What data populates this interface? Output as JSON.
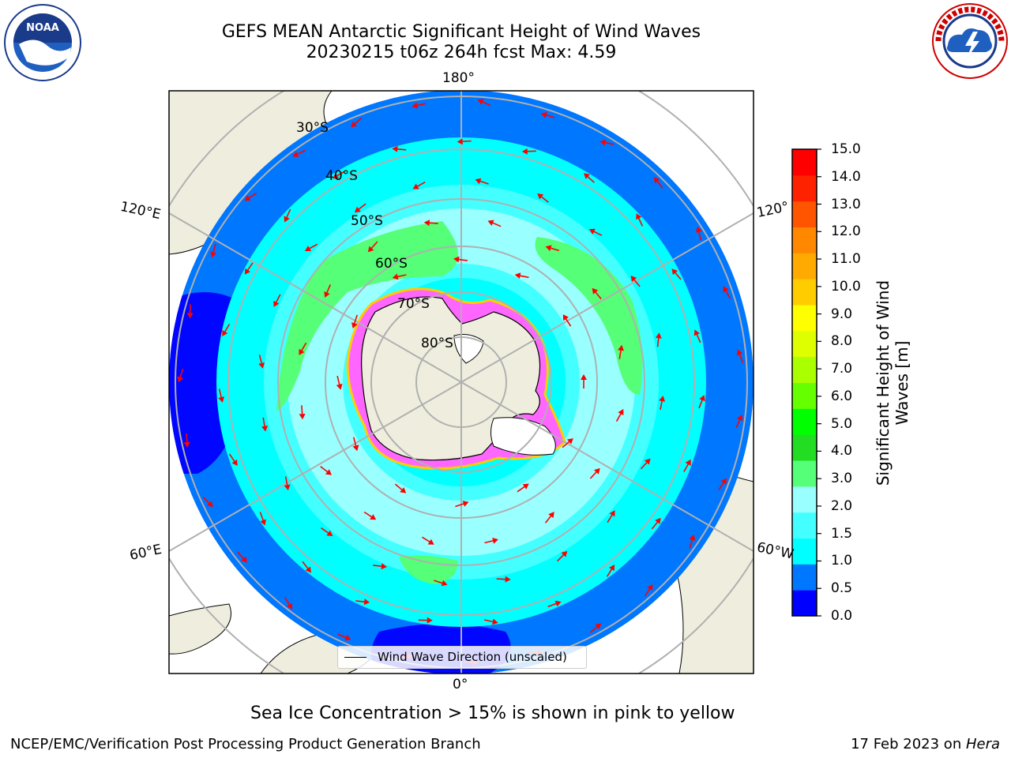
{
  "header": {
    "title_line1": "GEFS MEAN Antarctic Significant Height of Wind Waves",
    "title_line2": "20230215 t06z 264h fcst   Max: 4.59"
  },
  "map": {
    "projection": "south-polar-stereographic",
    "longitude_labels": {
      "top": "180°",
      "bottom": "0°",
      "upper_left": "120°E",
      "upper_right": "120°",
      "lower_left": "60°E",
      "lower_right": "60°W"
    },
    "latitude_labels": [
      "30°S",
      "40°S",
      "50°S",
      "60°S",
      "70°S",
      "80°S"
    ],
    "legend": "Wind Wave Direction (unscaled)",
    "arrow_color": "#ff0000",
    "land_color": "#efeede",
    "ice_colors": [
      "#ff00ff",
      "#ffff00",
      "#ffffff"
    ]
  },
  "colorbar": {
    "label": "Significant Height of Wind Waves [m]",
    "ticks": [
      "0.0",
      "0.5",
      "1.0",
      "1.5",
      "2.0",
      "3.0",
      "4.0",
      "5.0",
      "6.0",
      "7.0",
      "8.0",
      "9.0",
      "10.0",
      "11.0",
      "12.0",
      "13.0",
      "14.0",
      "15.0"
    ],
    "colors": [
      "#0000ff",
      "#0077ff",
      "#00ffff",
      "#44ffff",
      "#99ffff",
      "#55ff77",
      "#22dd22",
      "#00ff00",
      "#66ff00",
      "#aaff00",
      "#ddff00",
      "#ffff00",
      "#ffcc00",
      "#ffaa00",
      "#ff8800",
      "#ff5500",
      "#ff2200",
      "#ff0000"
    ]
  },
  "caption": "Sea Ice Concentration > 15% is shown in pink to yellow",
  "footer": {
    "left": "NCEP/EMC/Verification Post Processing Product Generation Branch",
    "right_date": "17 Feb 2023 on ",
    "right_machine": "Hera"
  }
}
